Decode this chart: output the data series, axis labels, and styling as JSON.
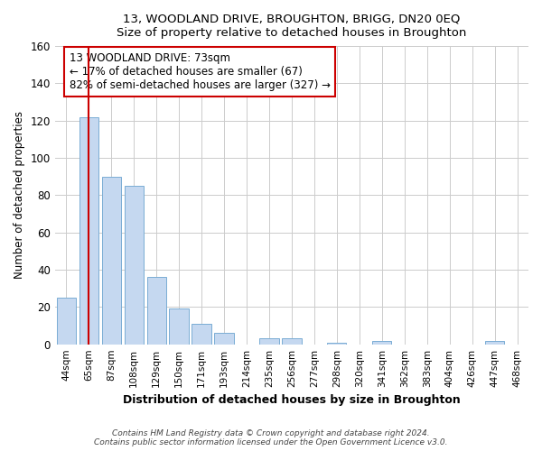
{
  "title": "13, WOODLAND DRIVE, BROUGHTON, BRIGG, DN20 0EQ",
  "subtitle": "Size of property relative to detached houses in Broughton",
  "xlabel": "Distribution of detached houses by size in Broughton",
  "ylabel": "Number of detached properties",
  "bar_labels": [
    "44sqm",
    "65sqm",
    "87sqm",
    "108sqm",
    "129sqm",
    "150sqm",
    "171sqm",
    "193sqm",
    "214sqm",
    "235sqm",
    "256sqm",
    "277sqm",
    "298sqm",
    "320sqm",
    "341sqm",
    "362sqm",
    "383sqm",
    "404sqm",
    "426sqm",
    "447sqm",
    "468sqm"
  ],
  "bar_values": [
    25,
    122,
    90,
    85,
    36,
    19,
    11,
    6,
    0,
    3,
    3,
    0,
    1,
    0,
    2,
    0,
    0,
    0,
    0,
    2,
    0
  ],
  "bar_color": "#c5d8f0",
  "bar_edge_color": "#7aadd4",
  "vline_x_index": 1,
  "vline_color": "#cc0000",
  "annotation_text": "13 WOODLAND DRIVE: 73sqm\n← 17% of detached houses are smaller (67)\n82% of semi-detached houses are larger (327) →",
  "annotation_box_color": "#ffffff",
  "annotation_box_edge": "#cc0000",
  "ylim": [
    0,
    160
  ],
  "yticks": [
    0,
    20,
    40,
    60,
    80,
    100,
    120,
    140,
    160
  ],
  "footnote": "Contains HM Land Registry data © Crown copyright and database right 2024.\nContains public sector information licensed under the Open Government Licence v3.0.",
  "bg_color": "#ffffff",
  "plot_bg_color": "#ffffff",
  "grid_color": "#cccccc"
}
